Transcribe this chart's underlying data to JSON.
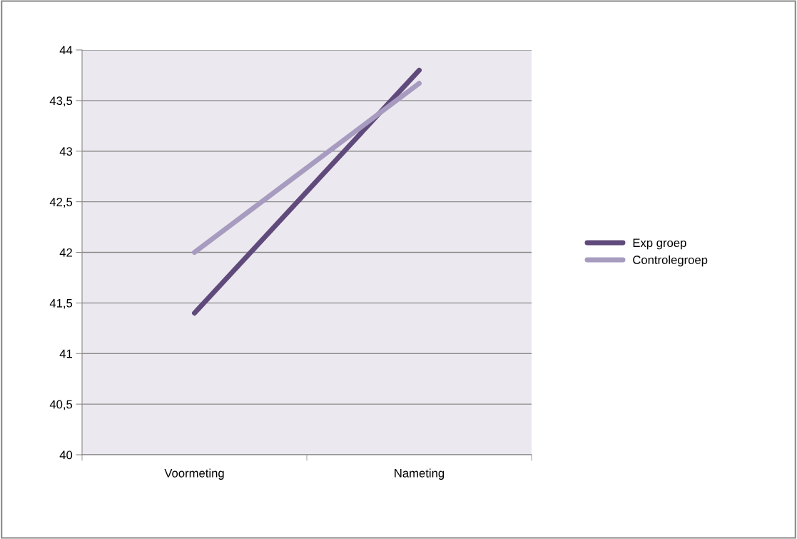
{
  "chart_data": {
    "type": "line",
    "categories": [
      "Voormeting",
      "Nameting"
    ],
    "series": [
      {
        "name": "Exp groep",
        "color": "#604a7b",
        "values": [
          41.4,
          43.8
        ]
      },
      {
        "name": "Controlegroep",
        "color": "#a79bc0",
        "values": [
          42.0,
          43.67
        ]
      }
    ],
    "ylim": [
      40,
      44
    ],
    "yticks": [
      40,
      {
        "value": 40.5,
        "label": "40,5"
      },
      41,
      {
        "value": 41.5,
        "label": "41,5"
      },
      42,
      {
        "value": 42.5,
        "label": "42,5"
      },
      43,
      {
        "value": 43.5,
        "label": "43,5"
      },
      44
    ],
    "grid": "y",
    "legend": "right",
    "marker": "none",
    "line_style": "solid"
  }
}
